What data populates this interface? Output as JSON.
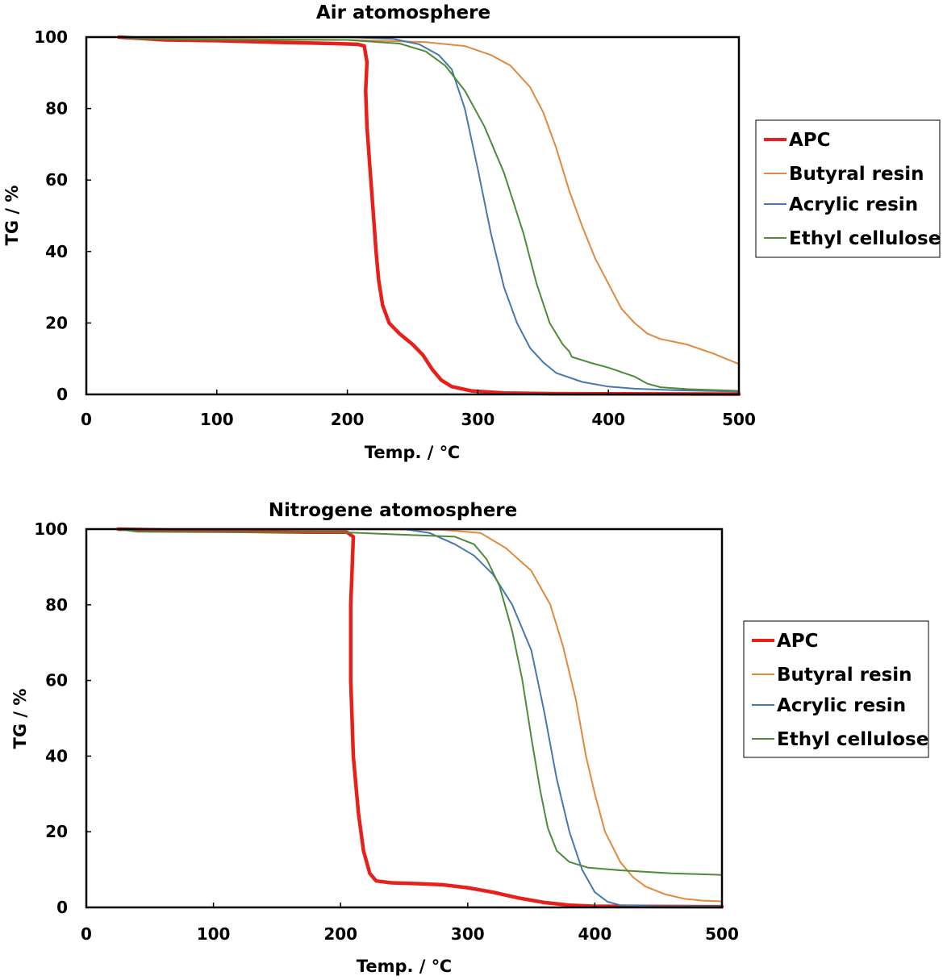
{
  "chart_data": [
    {
      "type": "line",
      "title": "Air atomosphere",
      "xlabel": "Temp. / ℃",
      "ylabel": "TG / %",
      "xlim": [
        0,
        500
      ],
      "ylim": [
        0,
        100
      ],
      "xticks": [
        "0",
        "100",
        "200",
        "300",
        "400",
        "500"
      ],
      "yticks": [
        "0",
        "20",
        "40",
        "60",
        "80",
        "100"
      ],
      "grid": false,
      "legend_position": "right",
      "series": [
        {
          "name": "APC",
          "color": "#e8201c",
          "width": 4.5,
          "points": [
            [
              25,
              100
            ],
            [
              60,
              99.2
            ],
            [
              100,
              99
            ],
            [
              150,
              98.5
            ],
            [
              190,
              98.2
            ],
            [
              208,
              98
            ],
            [
              213,
              97.5
            ],
            [
              215,
              93
            ],
            [
              214,
              85
            ],
            [
              215,
              75
            ],
            [
              217,
              65
            ],
            [
              220,
              50
            ],
            [
              222,
              40
            ],
            [
              224,
              32
            ],
            [
              227,
              25
            ],
            [
              232,
              20
            ],
            [
              240,
              17
            ],
            [
              250,
              14
            ],
            [
              258,
              11
            ],
            [
              265,
              7
            ],
            [
              272,
              4
            ],
            [
              280,
              2.2
            ],
            [
              295,
              1
            ],
            [
              320,
              0.4
            ],
            [
              360,
              0.2
            ],
            [
              500,
              0.1
            ]
          ]
        },
        {
          "name": "Butyral resin",
          "color": "#e08a3c",
          "width": 2,
          "points": [
            [
              25,
              100
            ],
            [
              100,
              99.5
            ],
            [
              200,
              99.2
            ],
            [
              260,
              98.6
            ],
            [
              290,
              97.5
            ],
            [
              310,
              95
            ],
            [
              325,
              92
            ],
            [
              340,
              86
            ],
            [
              350,
              79
            ],
            [
              360,
              69
            ],
            [
              370,
              57
            ],
            [
              380,
              47
            ],
            [
              390,
              38
            ],
            [
              400,
              31
            ],
            [
              410,
              24
            ],
            [
              420,
              20
            ],
            [
              430,
              17
            ],
            [
              440,
              15.5
            ],
            [
              460,
              14
            ],
            [
              480,
              11.5
            ],
            [
              500,
              8.5
            ]
          ]
        },
        {
          "name": "Acrylic resin",
          "color": "#4678b0",
          "width": 2,
          "points": [
            [
              25,
              100
            ],
            [
              100,
              100
            ],
            [
              200,
              100
            ],
            [
              235,
              99.5
            ],
            [
              255,
              98
            ],
            [
              270,
              95
            ],
            [
              280,
              91
            ],
            [
              290,
              80
            ],
            [
              300,
              63
            ],
            [
              310,
              45
            ],
            [
              320,
              30
            ],
            [
              330,
              20
            ],
            [
              340,
              13
            ],
            [
              350,
              9
            ],
            [
              360,
              6
            ],
            [
              380,
              3.5
            ],
            [
              400,
              2.2
            ],
            [
              420,
              1.6
            ],
            [
              450,
              1.2
            ],
            [
              500,
              0.8
            ]
          ]
        },
        {
          "name": "Ethyl cellulose",
          "color": "#4f8a3a",
          "width": 2,
          "points": [
            [
              25,
              100
            ],
            [
              40,
              99.5
            ],
            [
              100,
              99.3
            ],
            [
              200,
              99.2
            ],
            [
              240,
              98.2
            ],
            [
              260,
              96
            ],
            [
              275,
              92
            ],
            [
              290,
              85
            ],
            [
              305,
              75
            ],
            [
              320,
              62
            ],
            [
              335,
              45
            ],
            [
              345,
              31
            ],
            [
              355,
              20
            ],
            [
              365,
              14
            ],
            [
              370,
              12
            ],
            [
              372,
              10.5
            ],
            [
              385,
              9
            ],
            [
              400,
              7.5
            ],
            [
              420,
              5
            ],
            [
              430,
              3
            ],
            [
              440,
              2
            ],
            [
              460,
              1.5
            ],
            [
              500,
              1
            ]
          ]
        }
      ]
    },
    {
      "type": "line",
      "title": "Nitrogene atomosphere",
      "xlabel": "Temp. / ℃",
      "ylabel": "TG / %",
      "xlim": [
        0,
        500
      ],
      "ylim": [
        0,
        100
      ],
      "xticks": [
        "0",
        "100",
        "200",
        "300",
        "400",
        "500"
      ],
      "yticks": [
        "0",
        "20",
        "40",
        "60",
        "80",
        "100"
      ],
      "grid": false,
      "legend_position": "right",
      "series": [
        {
          "name": "APC",
          "color": "#e8201c",
          "width": 4.5,
          "points": [
            [
              25,
              100
            ],
            [
              100,
              99.5
            ],
            [
              180,
              99.2
            ],
            [
              205,
              99.2
            ],
            [
              210,
              98
            ],
            [
              208,
              80
            ],
            [
              208,
              60
            ],
            [
              210,
              40
            ],
            [
              214,
              25
            ],
            [
              218,
              15
            ],
            [
              223,
              9
            ],
            [
              228,
              7
            ],
            [
              240,
              6.5
            ],
            [
              260,
              6.3
            ],
            [
              280,
              6
            ],
            [
              300,
              5.2
            ],
            [
              320,
              4
            ],
            [
              340,
              2.5
            ],
            [
              360,
              1.3
            ],
            [
              380,
              0.6
            ],
            [
              400,
              0.3
            ],
            [
              500,
              0.2
            ]
          ]
        },
        {
          "name": "Butyral resin",
          "color": "#e08a3c",
          "width": 2,
          "points": [
            [
              25,
              100
            ],
            [
              100,
              100
            ],
            [
              200,
              100
            ],
            [
              280,
              99.8
            ],
            [
              310,
              99
            ],
            [
              330,
              95
            ],
            [
              350,
              89
            ],
            [
              365,
              80
            ],
            [
              375,
              69
            ],
            [
              385,
              55
            ],
            [
              393,
              40
            ],
            [
              400,
              30
            ],
            [
              408,
              20
            ],
            [
              420,
              12
            ],
            [
              430,
              8
            ],
            [
              440,
              5.5
            ],
            [
              455,
              3.5
            ],
            [
              470,
              2.3
            ],
            [
              485,
              1.8
            ],
            [
              500,
              1.6
            ]
          ]
        },
        {
          "name": "Acrylic resin",
          "color": "#4678b0",
          "width": 2,
          "points": [
            [
              25,
              100
            ],
            [
              100,
              100
            ],
            [
              200,
              100
            ],
            [
              250,
              100
            ],
            [
              270,
              99
            ],
            [
              290,
              96
            ],
            [
              305,
              93
            ],
            [
              320,
              88
            ],
            [
              335,
              80
            ],
            [
              350,
              68
            ],
            [
              360,
              52
            ],
            [
              370,
              34
            ],
            [
              380,
              20
            ],
            [
              390,
              10
            ],
            [
              400,
              4
            ],
            [
              410,
              1.5
            ],
            [
              420,
              0.6
            ],
            [
              450,
              0.3
            ],
            [
              500,
              0.3
            ]
          ]
        },
        {
          "name": "Ethyl cellulose",
          "color": "#4f8a3a",
          "width": 2,
          "points": [
            [
              25,
              100
            ],
            [
              40,
              99.3
            ],
            [
              100,
              99.2
            ],
            [
              200,
              99.2
            ],
            [
              250,
              98.5
            ],
            [
              290,
              98
            ],
            [
              305,
              96
            ],
            [
              315,
              92
            ],
            [
              325,
              85
            ],
            [
              335,
              73
            ],
            [
              343,
              60
            ],
            [
              350,
              45
            ],
            [
              357,
              31
            ],
            [
              363,
              21
            ],
            [
              370,
              15
            ],
            [
              380,
              12
            ],
            [
              395,
              10.5
            ],
            [
              420,
              9.8
            ],
            [
              460,
              9
            ],
            [
              500,
              8.6
            ]
          ]
        }
      ]
    }
  ]
}
